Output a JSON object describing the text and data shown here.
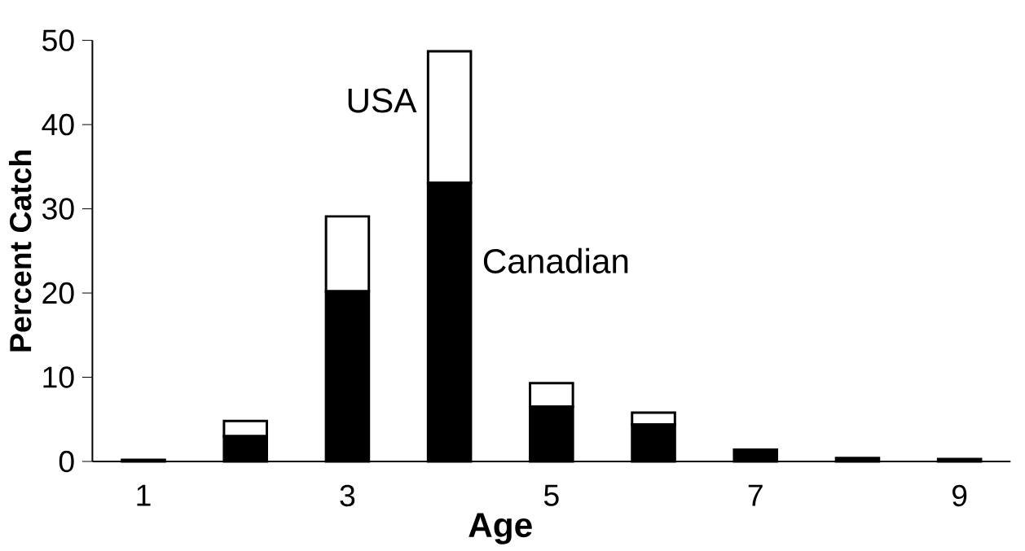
{
  "chart_data": {
    "type": "bar",
    "stacked": true,
    "xlabel": "Age",
    "ylabel": "Percent Catch",
    "categories": [
      "1",
      null,
      "3",
      null,
      "5",
      null,
      "7",
      null,
      "9"
    ],
    "series": [
      {
        "name": "Canadian",
        "color": "#000000",
        "values": [
          0.2,
          3.0,
          20.2,
          33.1,
          6.5,
          4.4,
          1.4,
          0.4,
          0.3
        ]
      },
      {
        "name": "USA",
        "color": "#ffffff",
        "values": [
          0,
          1.8,
          8.9,
          15.6,
          2.8,
          1.4,
          0,
          0,
          0
        ]
      }
    ],
    "ylim": [
      0,
      50
    ],
    "yticks": [
      0,
      10,
      20,
      30,
      40,
      50
    ],
    "grid": false,
    "legend": false
  }
}
